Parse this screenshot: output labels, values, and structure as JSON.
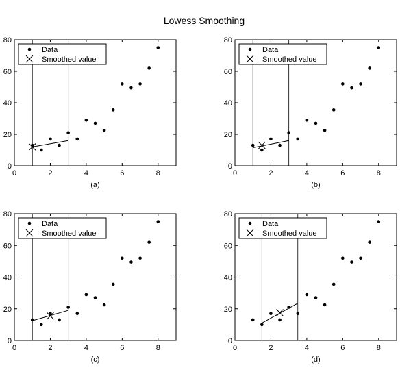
{
  "figure": {
    "title": "Lowess Smoothing"
  },
  "chart_data": [
    {
      "type": "scatter",
      "title": "",
      "xlabel": "(a)",
      "ylabel": "",
      "xlim": [
        0,
        9
      ],
      "ylim": [
        0,
        80
      ],
      "xticks": [
        0,
        2,
        4,
        6,
        8
      ],
      "yticks": [
        0,
        20,
        40,
        60,
        80
      ],
      "grid": false,
      "legend": {
        "placement": "top-left",
        "entries": [
          "Data",
          "Smoothed value"
        ]
      },
      "series": [
        {
          "name": "Data",
          "marker": "dot",
          "x": [
            1,
            1.5,
            2,
            2.5,
            3,
            3.5,
            4,
            4.5,
            5,
            5.5,
            6,
            6.5,
            7,
            7.5,
            8
          ],
          "y": [
            13,
            10,
            17,
            13,
            21,
            17,
            29,
            27,
            22.5,
            35.5,
            52,
            49.5,
            52,
            62,
            75
          ]
        },
        {
          "name": "Smoothed value",
          "marker": "x",
          "x": [
            1
          ],
          "y": [
            12
          ]
        }
      ],
      "window": [
        1,
        3
      ],
      "fit_line": {
        "x": [
          1,
          3
        ],
        "y": [
          12,
          16
        ]
      }
    },
    {
      "type": "scatter",
      "title": "",
      "xlabel": "(b)",
      "ylabel": "",
      "xlim": [
        0,
        9
      ],
      "ylim": [
        0,
        80
      ],
      "xticks": [
        0,
        2,
        4,
        6,
        8
      ],
      "yticks": [
        0,
        20,
        40,
        60,
        80
      ],
      "grid": false,
      "legend": {
        "placement": "top-left",
        "entries": [
          "Data",
          "Smoothed value"
        ]
      },
      "series": [
        {
          "name": "Data",
          "marker": "dot",
          "x": [
            1,
            1.5,
            2,
            2.5,
            3,
            3.5,
            4,
            4.5,
            5,
            5.5,
            6,
            6.5,
            7,
            7.5,
            8
          ],
          "y": [
            13,
            10,
            17,
            13,
            21,
            17,
            29,
            27,
            22.5,
            35.5,
            52,
            49.5,
            52,
            62,
            75
          ]
        },
        {
          "name": "Smoothed value",
          "marker": "x",
          "x": [
            1.5
          ],
          "y": [
            13
          ]
        }
      ],
      "window": [
        1,
        3
      ],
      "fit_line": {
        "x": [
          1,
          3
        ],
        "y": [
          11.5,
          16
        ]
      }
    },
    {
      "type": "scatter",
      "title": "",
      "xlabel": "(c)",
      "ylabel": "",
      "xlim": [
        0,
        9
      ],
      "ylim": [
        0,
        80
      ],
      "xticks": [
        0,
        2,
        4,
        6,
        8
      ],
      "yticks": [
        0,
        20,
        40,
        60,
        80
      ],
      "grid": false,
      "legend": {
        "placement": "top-left",
        "entries": [
          "Data",
          "Smoothed value"
        ]
      },
      "series": [
        {
          "name": "Data",
          "marker": "dot",
          "x": [
            1,
            1.5,
            2,
            2.5,
            3,
            3.5,
            4,
            4.5,
            5,
            5.5,
            6,
            6.5,
            7,
            7.5,
            8
          ],
          "y": [
            13,
            10,
            17,
            13,
            21,
            17,
            29,
            27,
            22.5,
            35.5,
            52,
            49.5,
            52,
            62,
            75
          ]
        },
        {
          "name": "Smoothed value",
          "marker": "x",
          "x": [
            2
          ],
          "y": [
            15.5
          ]
        }
      ],
      "window": [
        1,
        3
      ],
      "fit_line": {
        "x": [
          1,
          3
        ],
        "y": [
          12.5,
          19
        ]
      }
    },
    {
      "type": "scatter",
      "title": "",
      "xlabel": "(d)",
      "ylabel": "",
      "xlim": [
        0,
        9
      ],
      "ylim": [
        0,
        80
      ],
      "xticks": [
        0,
        2,
        4,
        6,
        8
      ],
      "yticks": [
        0,
        20,
        40,
        60,
        80
      ],
      "grid": false,
      "legend": {
        "placement": "top-left",
        "entries": [
          "Data",
          "Smoothed value"
        ]
      },
      "series": [
        {
          "name": "Data",
          "marker": "dot",
          "x": [
            1,
            1.5,
            2,
            2.5,
            3,
            3.5,
            4,
            4.5,
            5,
            5.5,
            6,
            6.5,
            7,
            7.5,
            8
          ],
          "y": [
            13,
            10,
            17,
            13,
            21,
            17,
            29,
            27,
            22.5,
            35.5,
            52,
            49.5,
            52,
            62,
            75
          ]
        },
        {
          "name": "Smoothed value",
          "marker": "x",
          "x": [
            2.5
          ],
          "y": [
            17.5
          ]
        }
      ],
      "window": [
        1.5,
        3.5
      ],
      "fit_line": {
        "x": [
          1.5,
          3.5
        ],
        "y": [
          11,
          23.5
        ]
      }
    }
  ]
}
